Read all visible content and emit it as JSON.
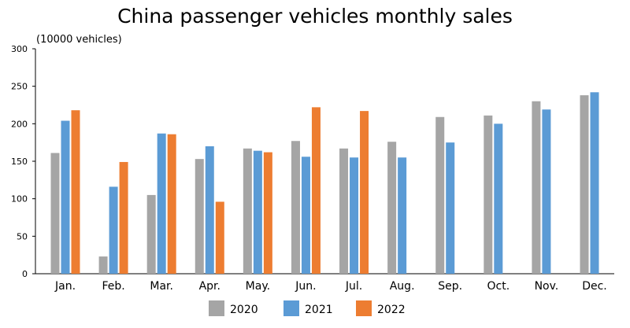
{
  "chart_data": {
    "type": "bar",
    "title": "China passenger vehicles monthly sales",
    "ylabel": "(10000 vehicles)",
    "xlabel": "",
    "ylim": [
      0,
      300
    ],
    "yticks": [
      0,
      50,
      100,
      150,
      200,
      250,
      300
    ],
    "grid": false,
    "legend_position": "bottom",
    "categories": [
      "Jan.",
      "Feb.",
      "Mar.",
      "Apr.",
      "May.",
      "Jun.",
      "Jul.",
      "Aug.",
      "Sep.",
      "Oct.",
      "Nov.",
      "Dec."
    ],
    "series": [
      {
        "name": "2020",
        "color": "#a5a5a5",
        "values": [
          161,
          23,
          105,
          153,
          167,
          177,
          167,
          176,
          209,
          211,
          230,
          238
        ]
      },
      {
        "name": "2021",
        "color": "#5b9bd5",
        "values": [
          204,
          116,
          187,
          170,
          164,
          156,
          155,
          155,
          175,
          200,
          219,
          242
        ]
      },
      {
        "name": "2022",
        "color": "#ed7d31",
        "values": [
          218,
          149,
          186,
          96,
          162,
          222,
          217,
          null,
          null,
          null,
          null,
          null
        ]
      }
    ]
  }
}
